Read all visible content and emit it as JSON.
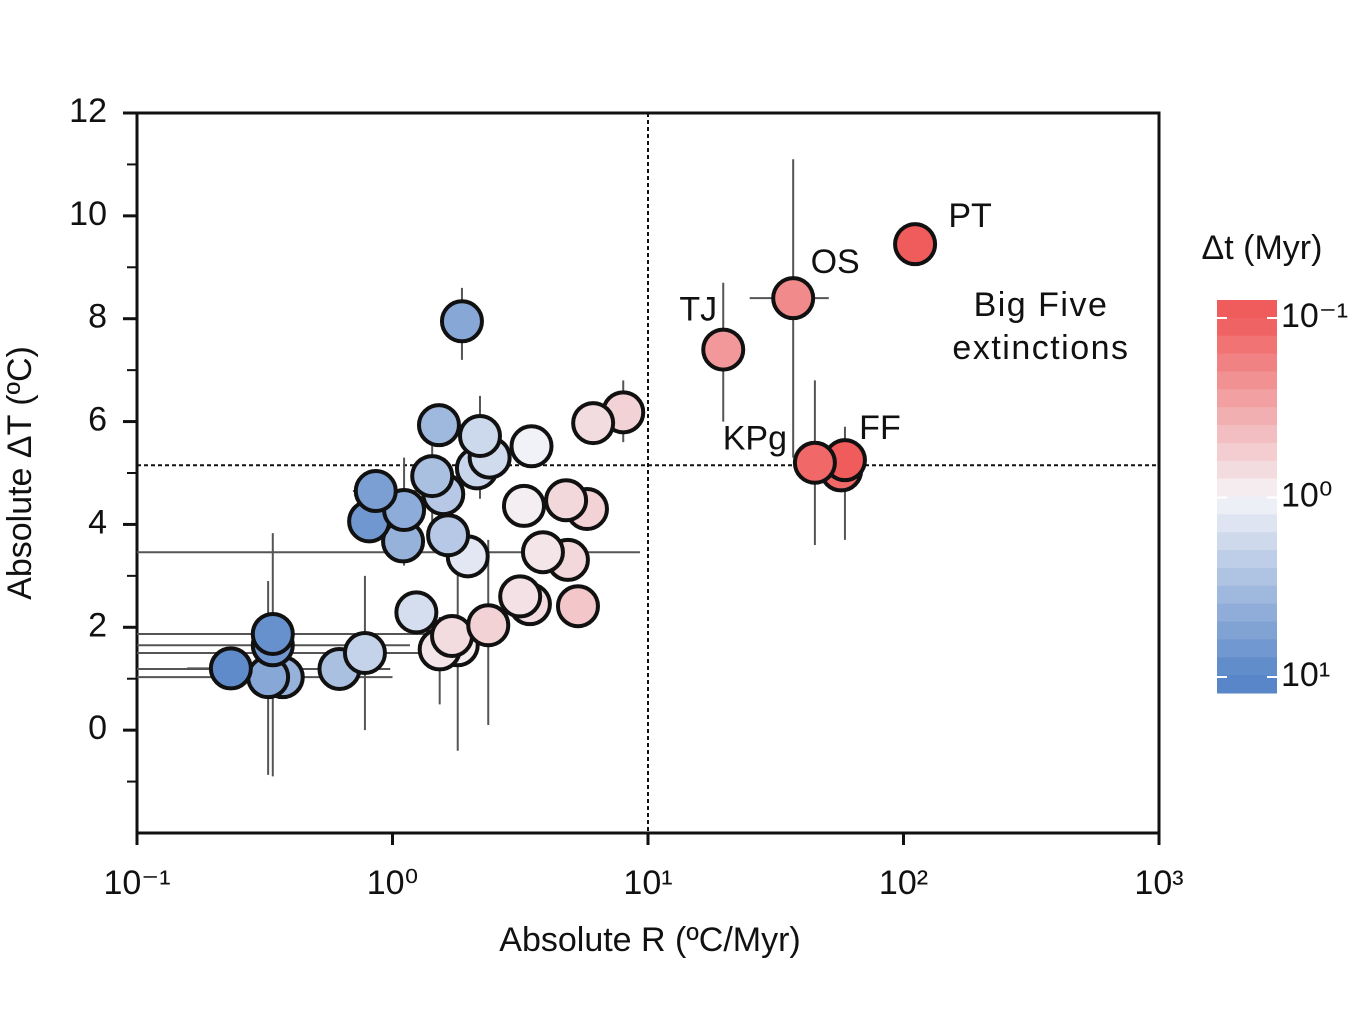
{
  "chart_data": {
    "type": "scatter",
    "x_label": "Absolute R (ºC/Myr)",
    "y_label": "Absolute ΔT (ºC)",
    "colorbar_label": "Δt (Myr)",
    "x_scale": "log",
    "xlim": [
      0.1,
      1000
    ],
    "xticks": [
      {
        "value": 0.1,
        "label": "10⁻¹"
      },
      {
        "value": 1,
        "label": "10⁰"
      },
      {
        "value": 10,
        "label": "10¹"
      },
      {
        "value": 100,
        "label": "10²"
      },
      {
        "value": 1000,
        "label": "10³"
      }
    ],
    "ylim": [
      -2,
      12
    ],
    "yticks": [
      0,
      2,
      4,
      6,
      8,
      10,
      12
    ],
    "y_minor_ticks": [
      -1,
      1,
      3,
      5,
      7,
      9,
      11
    ],
    "reference_lines": {
      "x": 10,
      "y": 5.15
    },
    "clim": [
      0.1,
      10
    ],
    "cticks": [
      {
        "value": 0.1,
        "label": "10⁻¹"
      },
      {
        "value": 1,
        "label": "10⁰"
      },
      {
        "value": 10,
        "label": "10¹"
      }
    ],
    "colormap": [
      "#f05c5c",
      "#f4f4f8",
      "#5886c8"
    ],
    "annotation": [
      "Big Five",
      "extinctions"
    ],
    "point_labels": [
      "PT",
      "OS",
      "TJ",
      "KPg",
      "FF",
      null,
      null,
      null,
      null,
      null,
      null,
      null,
      null,
      null,
      null,
      null,
      null,
      null,
      null,
      null,
      null,
      null,
      null,
      null,
      null,
      null,
      null,
      null,
      null,
      null,
      null,
      null,
      null,
      null,
      null,
      null,
      null,
      null,
      null,
      null,
      null,
      null
    ],
    "x": [
      111,
      37,
      19.7,
      45,
      59,
      57,
      1.87,
      1.52,
      2.2,
      3.5,
      6.1,
      8.0,
      2.4,
      2.14,
      1.43,
      0.86,
      1.11,
      1.58,
      3.27,
      4.78,
      5.77,
      0.81,
      1.65,
      1.1,
      1.97,
      3.88,
      4.86,
      1.24,
      3.16,
      3.45,
      5.32,
      2.37,
      1.71,
      1.53,
      1.8,
      0.34,
      0.34,
      0.78,
      0.62,
      0.233,
      0.326,
      0.372
    ],
    "y": [
      9.45,
      8.4,
      7.4,
      5.2,
      5.25,
      5.05,
      7.95,
      5.93,
      5.72,
      5.52,
      5.97,
      6.18,
      5.3,
      5.09,
      4.94,
      4.65,
      4.28,
      4.59,
      4.36,
      4.47,
      4.3,
      4.06,
      3.79,
      3.67,
      3.38,
      3.46,
      3.31,
      2.29,
      2.6,
      2.45,
      2.41,
      2.04,
      1.83,
      1.57,
      1.65,
      1.87,
      1.65,
      1.5,
      1.19,
      1.2,
      1.03,
      1.03
    ],
    "color_values": [
      0.1,
      0.2,
      0.25,
      0.12,
      0.1,
      0.12,
      5,
      3.5,
      1.8,
      1.05,
      0.7,
      0.6,
      1.7,
      1.9,
      3,
      6,
      4.5,
      2.5,
      0.9,
      0.65,
      0.6,
      7,
      2.5,
      4,
      1.3,
      0.8,
      0.65,
      1.6,
      0.75,
      0.7,
      0.5,
      0.6,
      0.7,
      0.8,
      0.9,
      8,
      7,
      2,
      3,
      9,
      5,
      4
    ],
    "ylow": [
      null,
      5.3,
      6.0,
      3.6,
      3.7,
      null,
      7.2,
      null,
      4.5,
      null,
      null,
      5.6,
      null,
      null,
      4.0,
      null,
      3.2,
      null,
      null,
      null,
      null,
      null,
      null,
      null,
      null,
      null,
      null,
      null,
      null,
      null,
      null,
      0.1,
      null,
      0.5,
      -0.4,
      -0.9,
      null,
      0.0,
      null,
      null,
      -0.87,
      null
    ],
    "yhigh": [
      null,
      11.1,
      8.7,
      6.8,
      5.9,
      null,
      8.6,
      null,
      6.5,
      null,
      null,
      6.8,
      null,
      null,
      6.3,
      null,
      5.3,
      null,
      null,
      null,
      null,
      null,
      null,
      null,
      null,
      null,
      null,
      null,
      null,
      null,
      null,
      3.7,
      null,
      2.2,
      3.3,
      3.83,
      null,
      3.0,
      null,
      null,
      2.9,
      null
    ],
    "xlow": [
      null,
      25,
      null,
      null,
      null,
      null,
      null,
      null,
      null,
      null,
      null,
      null,
      null,
      null,
      null,
      0.7,
      null,
      null,
      null,
      null,
      null,
      null,
      null,
      null,
      null,
      0.1,
      null,
      null,
      null,
      null,
      null,
      null,
      null,
      null,
      null,
      0.1,
      0.1,
      0.1,
      0.1,
      0.157,
      0.1,
      null
    ],
    "xhigh": [
      null,
      51,
      null,
      null,
      null,
      null,
      null,
      null,
      null,
      null,
      null,
      null,
      null,
      null,
      null,
      1.3,
      null,
      null,
      null,
      null,
      null,
      null,
      null,
      null,
      null,
      9.3,
      null,
      null,
      null,
      null,
      null,
      null,
      null,
      null,
      null,
      2.4,
      1.17,
      1.4,
      0.98,
      0.38,
      1.0,
      null
    ]
  }
}
